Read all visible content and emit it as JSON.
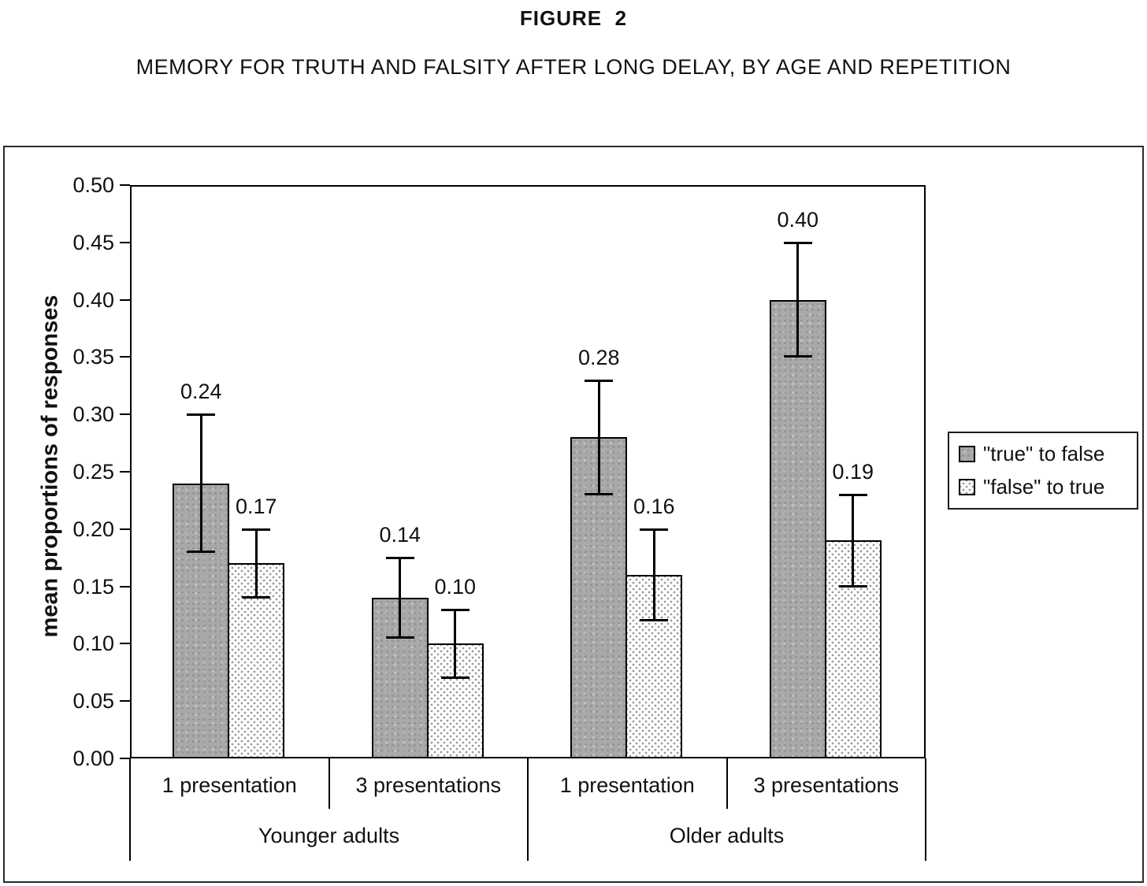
{
  "figure": {
    "label": "FIGURE  2",
    "title": "MEMORY FOR TRUTH AND FALSITY AFTER LONG DELAY, BY AGE AND REPETITION"
  },
  "chart_data": {
    "type": "bar",
    "title": "Memory for truth and falsity after long delay, by age and repetition",
    "ylabel": "mean proportions of responses",
    "xlabel": "",
    "ylim": [
      0,
      0.5
    ],
    "ytick_step": 0.05,
    "ytick_labels": [
      "0.00",
      "0.05",
      "0.10",
      "0.15",
      "0.20",
      "0.25",
      "0.30",
      "0.35",
      "0.40",
      "0.45",
      "0.50"
    ],
    "grid": false,
    "legend_position": "right",
    "categories": [
      "1 presentation",
      "3 presentations",
      "1 presentation",
      "3 presentations"
    ],
    "group_labels": [
      "Younger adults",
      "Older adults"
    ],
    "series": [
      {
        "name": "\"true\" to false",
        "swatch": "dark-gray-solid",
        "values": [
          0.24,
          0.14,
          0.28,
          0.4
        ],
        "labels": [
          "0.24",
          "0.14",
          "0.28",
          "0.40"
        ],
        "errors": [
          0.06,
          0.035,
          0.05,
          0.05
        ]
      },
      {
        "name": "\"false\" to true",
        "swatch": "white-dotted-hatch",
        "values": [
          0.17,
          0.1,
          0.16,
          0.19
        ],
        "labels": [
          "0.17",
          "0.10",
          "0.16",
          "0.19"
        ],
        "errors": [
          0.03,
          0.03,
          0.04,
          0.04
        ]
      }
    ]
  },
  "colors": {
    "bar_dark_fill": "#a9a9a9",
    "bar_light_dot": "#999999",
    "ink": "#000000",
    "background": "#ffffff"
  }
}
